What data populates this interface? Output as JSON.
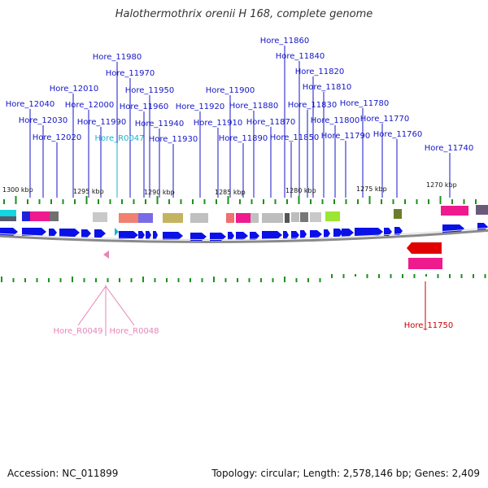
{
  "title": "Halothermothrix orenii H 168, complete genome",
  "footer": {
    "accession": "Accession: NC_011899",
    "topology": "Topology: circular; Length: 2,578,146 bp; Genes: 2,409"
  },
  "colors": {
    "forward_gene": "#0a10e8",
    "reverse_gene": "#e00000",
    "label_blue": "#1515c8",
    "label_cyan": "#19b4d2",
    "label_pink": "#e685b8",
    "label_red": "#cc0000",
    "tick_green": "#1f8f1f",
    "backbone": "#8a8a8a"
  },
  "scale_labels": [
    "1300 kbp",
    "1295 kbp",
    "1290 kbp",
    "1285 kbp",
    "1280 kbp",
    "1275 kbp",
    "1270 kbp"
  ],
  "gene_labels": [
    {
      "name": "Hore_11860",
      "color": "blue"
    },
    {
      "name": "Hore_11840",
      "color": "blue"
    },
    {
      "name": "Hore_11980",
      "color": "blue"
    },
    {
      "name": "Hore_11820",
      "color": "blue"
    },
    {
      "name": "Hore_11970",
      "color": "blue"
    },
    {
      "name": "Hore_12010",
      "color": "blue"
    },
    {
      "name": "Hore_11810",
      "color": "blue"
    },
    {
      "name": "Hore_11950",
      "color": "blue"
    },
    {
      "name": "Hore_11900",
      "color": "blue"
    },
    {
      "name": "Hore_12040",
      "color": "blue"
    },
    {
      "name": "Hore_12000",
      "color": "blue"
    },
    {
      "name": "Hore_11960",
      "color": "blue"
    },
    {
      "name": "Hore_11920",
      "color": "blue"
    },
    {
      "name": "Hore_11880",
      "color": "blue"
    },
    {
      "name": "Hore_11830",
      "color": "blue"
    },
    {
      "name": "Hore_11780",
      "color": "blue"
    },
    {
      "name": "Hore_12030",
      "color": "blue"
    },
    {
      "name": "Hore_11990",
      "color": "blue"
    },
    {
      "name": "Hore_11940",
      "color": "blue"
    },
    {
      "name": "Hore_11910",
      "color": "blue"
    },
    {
      "name": "Hore_11870",
      "color": "blue"
    },
    {
      "name": "Hore_11800",
      "color": "blue"
    },
    {
      "name": "Hore_11770",
      "color": "blue"
    },
    {
      "name": "Hore_11760",
      "color": "blue"
    },
    {
      "name": "Hore_12020",
      "color": "blue"
    },
    {
      "name": "Hore_R0047",
      "color": "cyan"
    },
    {
      "name": "Hore_11930",
      "color": "blue"
    },
    {
      "name": "Hore_11890",
      "color": "blue"
    },
    {
      "name": "Hore_11850",
      "color": "blue"
    },
    {
      "name": "Hore_11790",
      "color": "blue"
    },
    {
      "name": "Hore_11740",
      "color": "blue"
    },
    {
      "name": "Hore_R0049",
      "color": "pink"
    },
    {
      "name": "Hore_R0048",
      "color": "pink"
    },
    {
      "name": "Hore_11750",
      "color": "red"
    }
  ]
}
